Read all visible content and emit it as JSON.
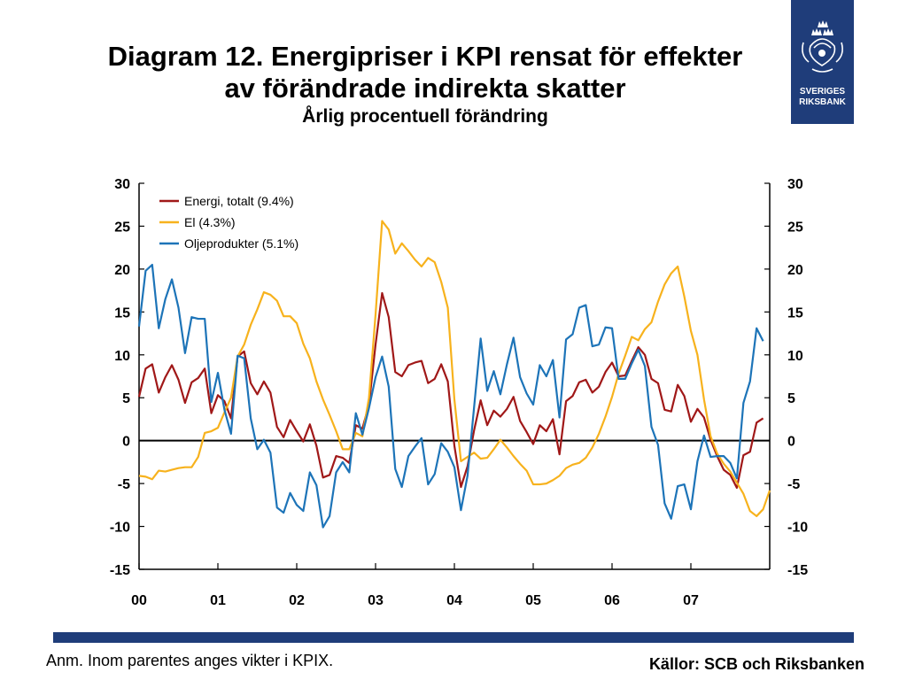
{
  "header": {
    "title_line1": "Diagram 12. Energipriser i KPI rensat för effekter",
    "title_line2": "av förändrade indirekta skatter",
    "subtitle": "Årlig procentuell förändring"
  },
  "logo": {
    "line1": "SVERIGES",
    "line2": "RIKSBANK"
  },
  "footer": {
    "note": "Anm. Inom parentes anges vikter i KPIX.",
    "sources": "Källor: SCB och Riksbanken"
  },
  "chart_data": {
    "type": "line",
    "title": "Diagram 12. Energipriser i KPI rensat för effekter av förändrade indirekta skatter",
    "subtitle": "Årlig procentuell förändring",
    "xlabel": "",
    "ylabel": "",
    "x_start": "2000-01",
    "x_step": "month",
    "xlim": [
      0,
      96
    ],
    "ylim": [
      -15,
      30
    ],
    "y_ticks": [
      30,
      25,
      20,
      15,
      10,
      5,
      0,
      -5,
      -10,
      -15
    ],
    "x_tick_labels": [
      "00",
      "01",
      "02",
      "03",
      "04",
      "05",
      "06",
      "07"
    ],
    "grid": false,
    "zero_line": true,
    "legend": "top-left",
    "series": [
      {
        "name": "Energi, totalt (9.4%)",
        "color": "#a01818",
        "values": [
          5.1,
          8.4,
          8.9,
          5.6,
          7.4,
          8.8,
          7.1,
          4.4,
          6.8,
          7.3,
          8.4,
          3.2,
          5.3,
          4.6,
          2.6,
          9.8,
          10.4,
          6.7,
          5.4,
          6.9,
          5.6,
          1.6,
          0.4,
          2.4,
          1.1,
          -0.1,
          1.9,
          -0.6,
          -4.3,
          -4.0,
          -1.8,
          -2.0,
          -2.6,
          1.8,
          1.4,
          4.2,
          11.2,
          17.2,
          14.4,
          8.0,
          7.5,
          8.8,
          9.1,
          9.3,
          6.7,
          7.2,
          8.9,
          6.9,
          -0.6,
          -5.4,
          -3.0,
          1.2,
          4.7,
          1.8,
          3.5,
          2.8,
          3.7,
          5.1,
          2.3,
          1.0,
          -0.4,
          1.8,
          1.1,
          2.5,
          -1.6,
          4.6,
          5.2,
          6.8,
          7.1,
          5.6,
          6.3,
          8.0,
          9.1,
          7.5,
          7.6,
          9.3,
          10.9,
          10.0,
          7.2,
          6.7,
          3.6,
          3.4,
          6.5,
          5.2,
          2.2,
          3.7,
          2.7,
          0.1,
          -1.8,
          -3.4,
          -4.0,
          -5.5,
          -1.7,
          -1.3,
          2.1,
          2.6
        ]
      },
      {
        "name": "El (4.3%)",
        "color": "#f7b21d",
        "values": [
          -4.1,
          -4.2,
          -4.5,
          -3.5,
          -3.6,
          -3.4,
          -3.2,
          -3.1,
          -3.1,
          -1.9,
          0.9,
          1.1,
          1.5,
          3.3,
          5.0,
          9.8,
          11.2,
          13.5,
          15.3,
          17.3,
          17.0,
          16.3,
          14.5,
          14.5,
          13.7,
          11.3,
          9.6,
          6.9,
          4.8,
          3.0,
          1.1,
          -1.0,
          -1.0,
          0.9,
          0.5,
          5.0,
          14.7,
          25.6,
          24.6,
          21.8,
          23.0,
          22.1,
          21.1,
          20.3,
          21.3,
          20.8,
          18.5,
          15.5,
          4.8,
          -2.4,
          -1.9,
          -1.4,
          -2.1,
          -2.0,
          -1.0,
          0.1,
          -0.8,
          -1.8,
          -2.7,
          -3.5,
          -5.1,
          -5.1,
          -5.0,
          -4.6,
          -4.1,
          -3.2,
          -2.8,
          -2.6,
          -2.0,
          -0.8,
          0.8,
          2.8,
          5.1,
          7.8,
          9.9,
          12.1,
          11.7,
          13.0,
          13.8,
          16.2,
          18.2,
          19.5,
          20.3,
          16.8,
          12.8,
          10.0,
          4.8,
          0.5,
          -1.5,
          -2.7,
          -3.6,
          -4.9,
          -6.2,
          -8.2,
          -8.8,
          -8.0,
          -5.8
        ]
      },
      {
        "name": "Oljeprodukter (5.1%)",
        "color": "#1d74b8",
        "values": [
          13.3,
          19.8,
          20.5,
          13.1,
          16.5,
          18.8,
          15.5,
          10.2,
          14.4,
          14.2,
          14.2,
          4.5,
          7.9,
          3.6,
          0.8,
          9.9,
          9.6,
          2.6,
          -1.0,
          0.1,
          -1.4,
          -7.8,
          -8.4,
          -6.1,
          -7.5,
          -8.2,
          -3.7,
          -5.2,
          -10.1,
          -8.8,
          -3.7,
          -2.5,
          -3.7,
          3.2,
          0.7,
          3.8,
          7.4,
          9.8,
          6.3,
          -3.3,
          -5.4,
          -1.8,
          -0.7,
          0.3,
          -5.1,
          -3.9,
          -0.3,
          -1.3,
          -3.1,
          -8.1,
          -4.1,
          3.9,
          11.9,
          5.8,
          8.1,
          5.4,
          8.9,
          12.0,
          7.4,
          5.5,
          4.2,
          8.8,
          7.5,
          9.4,
          2.7,
          11.8,
          12.4,
          15.5,
          15.8,
          11.0,
          11.2,
          13.2,
          13.1,
          7.2,
          7.2,
          9.0,
          10.6,
          8.7,
          1.6,
          -0.5,
          -7.3,
          -9.1,
          -5.3,
          -5.1,
          -8.0,
          -2.4,
          0.6,
          -1.9,
          -1.8,
          -1.8,
          -2.6,
          -4.4,
          4.4,
          6.9,
          13.1,
          11.6
        ]
      }
    ]
  }
}
